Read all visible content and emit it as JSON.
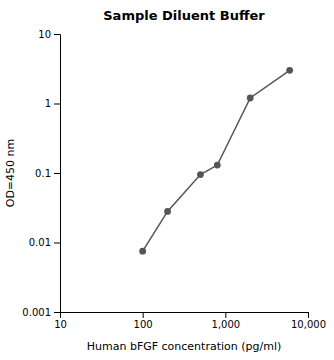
{
  "chart_data": {
    "type": "line",
    "title": "Sample Diluent Buffer",
    "xlabel": "Human bFGF concentration (pg/ml)",
    "ylabel": "OD=450 nm",
    "x": [
      100,
      200,
      500,
      800,
      2000,
      6000
    ],
    "values": [
      0.0075,
      0.028,
      0.095,
      0.13,
      1.2,
      3.0
    ],
    "color": "#555555",
    "marker": "circle",
    "log": true,
    "grid": false,
    "xlim": [
      10,
      10000
    ],
    "ylim": [
      0.001,
      10
    ],
    "xticks": [
      10,
      100,
      {
        "value": 1000,
        "label": "1,000"
      },
      {
        "value": 10000,
        "label": "10,000"
      }
    ],
    "yticks": [
      0.001,
      0.01,
      0.1,
      1,
      10
    ]
  }
}
